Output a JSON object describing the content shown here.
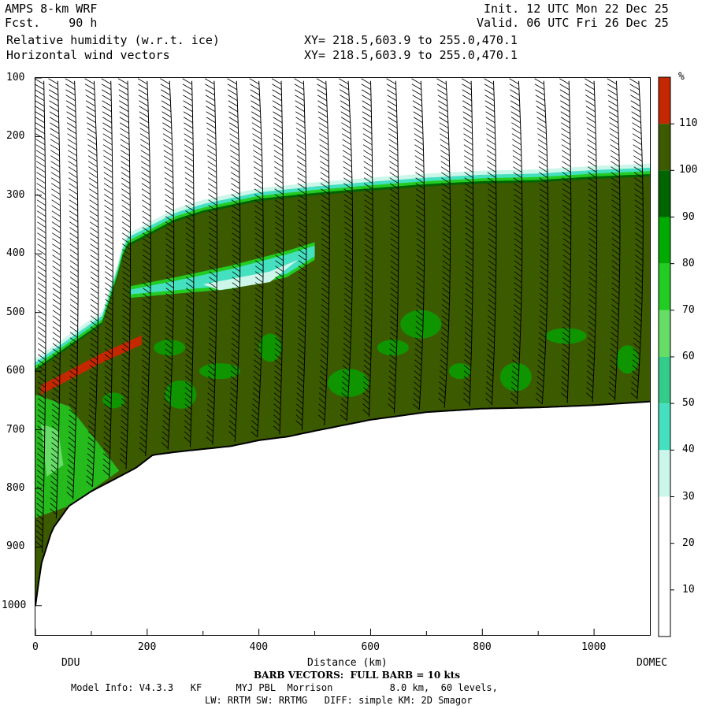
{
  "header": {
    "model": "AMPS 8-km WRF",
    "fcst": "Fcst.    90 h",
    "init": "Init. 12 UTC Mon 22 Dec 25",
    "valid": "Valid. 06 UTC Fri 26 Dec 25",
    "field1": "Relative humidity (w.r.t. ice)",
    "field2": "Horizontal wind vectors",
    "xy1": "XY= 218.5,603.9 to 255.0,470.1",
    "xy2": "XY= 218.5,603.9 to 255.0,470.1"
  },
  "axes": {
    "xlabel": "Distance (km)",
    "left_endpoint": "DDU",
    "right_endpoint": "DOMEC",
    "x_ticks": [
      "0",
      "200",
      "400",
      "600",
      "800",
      "1000"
    ],
    "y_ticks": [
      "100",
      "200",
      "300",
      "400",
      "500",
      "600",
      "700",
      "800",
      "900",
      "1000"
    ]
  },
  "colorbar": {
    "unit": "%",
    "labels": [
      "110",
      "100",
      "90",
      "80",
      "70",
      "60",
      "50",
      "40",
      "30",
      "20",
      "10"
    ],
    "colors": {
      "gt110": "#c42800",
      "100_110": "#3c5a00",
      "90_100": "#006400",
      "80_90": "#00aa00",
      "70_80": "#22cc22",
      "60_70": "#66dd66",
      "50_60": "#33cc88",
      "40_50": "#44e0c0",
      "30_40": "#ccf6ea",
      "lt30": "#ffffff"
    }
  },
  "footer": {
    "barb_note": "BARB VECTORS:  FULL BARB = 10 kts",
    "model_info": "Model Info: V4.3.3   KF      MYJ PBL  Morrison          8.0 km,  60 levels,",
    "model_info2": "LW: RRTM SW: RRTMG   DIFF: simple KM: 2D Smagor"
  },
  "chart_data": {
    "type": "heatmap",
    "title": "Relative humidity (w.r.t. ice)",
    "xlabel": "Distance (km)",
    "ylabel": "",
    "xlim": [
      0,
      1100
    ],
    "ylim": [
      1050,
      100
    ],
    "y_scale": "pressure (increasing downward)",
    "colorbar_levels": [
      10,
      20,
      30,
      40,
      50,
      60,
      70,
      80,
      90,
      100,
      110
    ],
    "terrain_surface": {
      "x": [
        0,
        10,
        30,
        60,
        100,
        140,
        180,
        210,
        250,
        300,
        350,
        400,
        450,
        500,
        600,
        700,
        800,
        900,
        1000,
        1100
      ],
      "p": [
        1000,
        930,
        870,
        830,
        805,
        785,
        765,
        743,
        738,
        733,
        728,
        718,
        712,
        702,
        683,
        670,
        664,
        662,
        658,
        652
      ]
    },
    "moist_top_boundary": {
      "x": [
        0,
        60,
        120,
        150,
        160,
        200,
        250,
        300,
        400,
        500,
        600,
        700,
        800,
        900,
        1000,
        1100
      ],
      "p": [
        600,
        560,
        520,
        430,
        390,
        370,
        345,
        330,
        310,
        300,
        292,
        285,
        280,
        278,
        272,
        268
      ]
    },
    "dry_intrusion": {
      "x": [
        170,
        250,
        350,
        450,
        500
      ],
      "p_top": [
        455,
        440,
        420,
        395,
        380
      ],
      "p_bottom": [
        475,
        468,
        460,
        440,
        410
      ]
    },
    "saturated_band_gt110": {
      "x": [
        10,
        60,
        120,
        190
      ],
      "p": [
        630,
        605,
        575,
        545
      ]
    },
    "wind_barb_columns_km": [
      15,
      40,
      70,
      105,
      135,
      165,
      200,
      240,
      280,
      320,
      360,
      400,
      440,
      480,
      520,
      560,
      600,
      645,
      690,
      735,
      780,
      820,
      865,
      910,
      955,
      1000,
      1040,
      1080
    ]
  }
}
